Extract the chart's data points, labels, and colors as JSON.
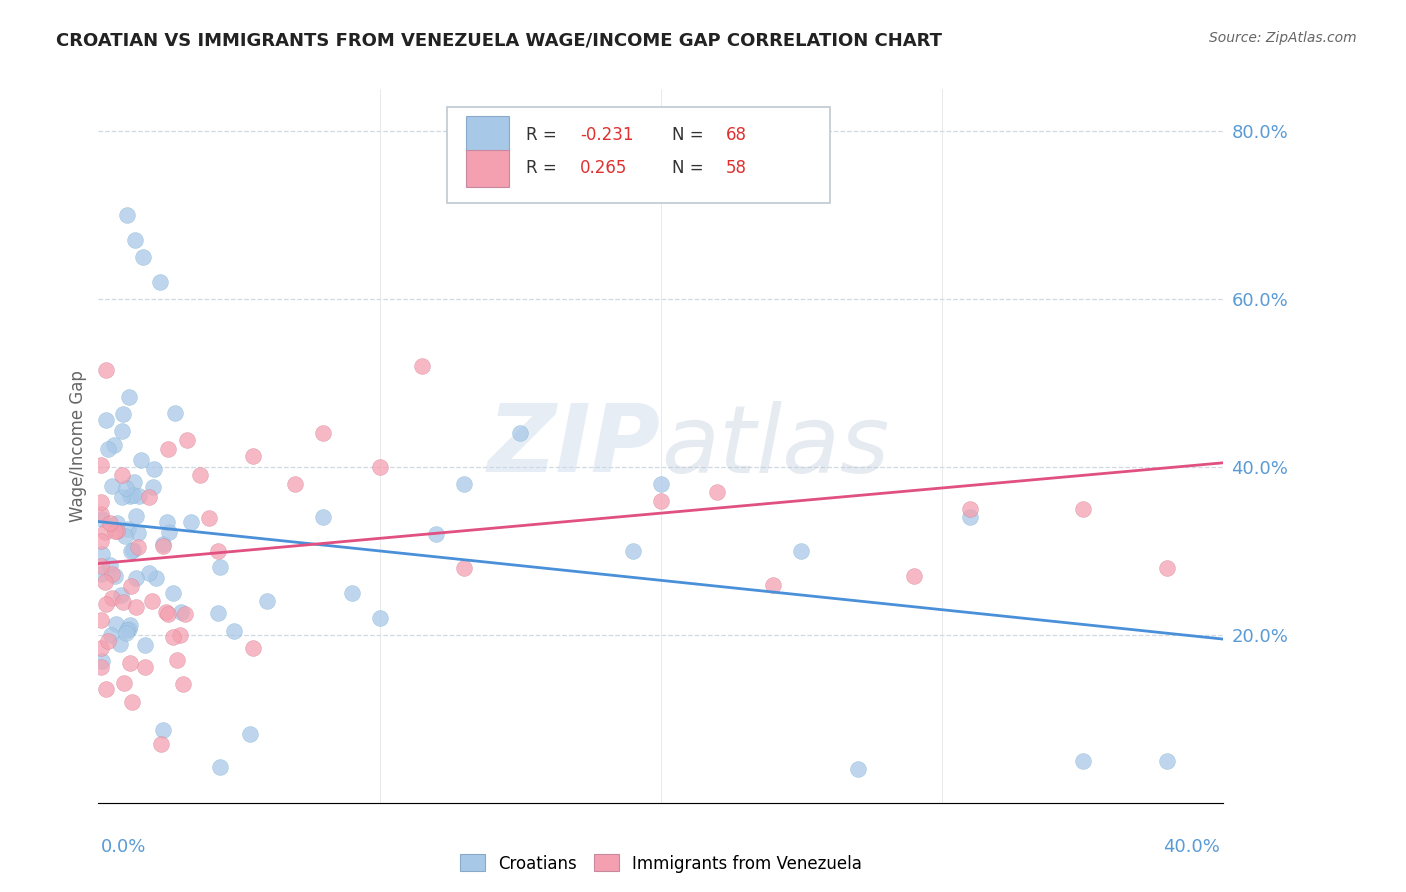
{
  "title": "CROATIAN VS IMMIGRANTS FROM VENEZUELA WAGE/INCOME GAP CORRELATION CHART",
  "source": "Source: ZipAtlas.com",
  "ylabel": "Wage/Income Gap",
  "watermark": "ZIPatlas",
  "legend_blue_r": "-0.231",
  "legend_blue_n": "68",
  "legend_pink_r": "0.265",
  "legend_pink_n": "58",
  "blue_color": "#a8c8e8",
  "pink_color": "#f4a0b0",
  "blue_line_color": "#4a90d9",
  "pink_line_color": "#e05080",
  "right_axis_color": "#5b9bd5",
  "grid_color": "#d0d8e0",
  "xlim": [
    0.0,
    0.4
  ],
  "ylim": [
    0.0,
    0.85
  ],
  "blue_line_y0": 0.335,
  "blue_line_y1": 0.195,
  "pink_line_y0": 0.285,
  "pink_line_y1": 0.405
}
